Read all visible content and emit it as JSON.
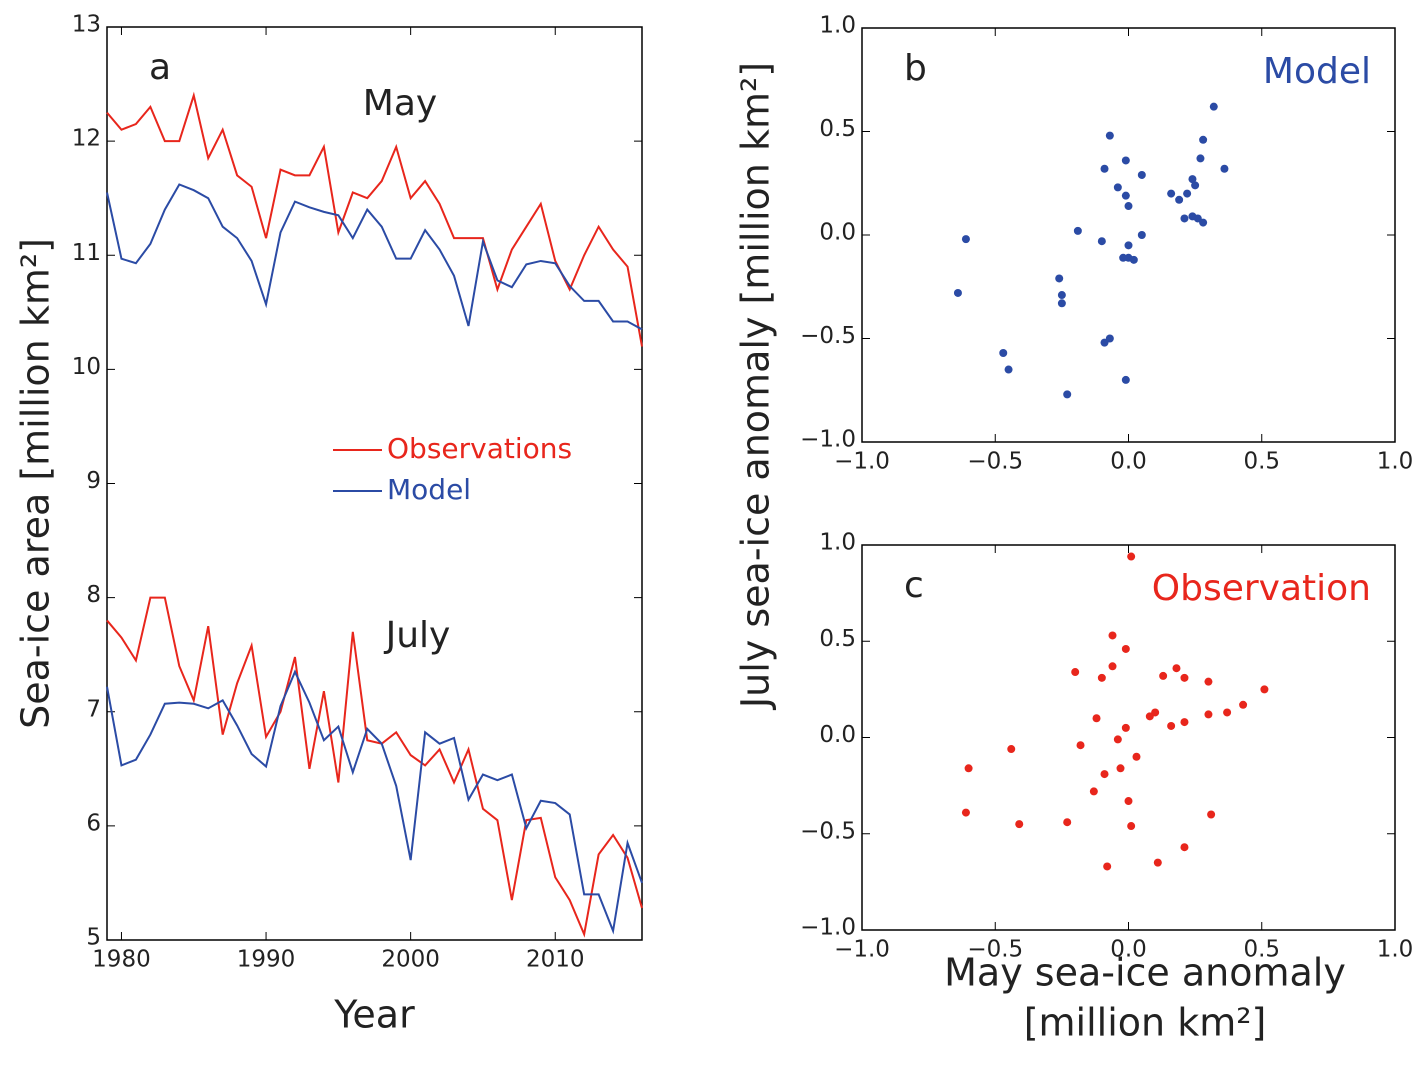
{
  "chart_data": [
    {
      "type": "line",
      "panel": "a",
      "xlabel": "Year",
      "ylabel": "Sea-ice area [million km²]",
      "x": [
        1979,
        1980,
        1981,
        1982,
        1983,
        1984,
        1985,
        1986,
        1987,
        1988,
        1989,
        1990,
        1991,
        1992,
        1993,
        1994,
        1995,
        1996,
        1997,
        1998,
        1999,
        2000,
        2001,
        2002,
        2003,
        2004,
        2005,
        2006,
        2007,
        2008,
        2009,
        2010,
        2011,
        2012,
        2013,
        2014,
        2015,
        2016
      ],
      "groups": [
        {
          "label": "May",
          "series": [
            {
              "name": "Observations",
              "color": "#e8261c",
              "values": [
                12.25,
                12.1,
                12.15,
                12.3,
                12.0,
                12.0,
                12.4,
                11.85,
                12.1,
                11.7,
                11.6,
                11.15,
                11.75,
                11.7,
                11.7,
                11.95,
                11.2,
                11.55,
                11.5,
                11.65,
                11.95,
                11.5,
                11.65,
                11.45,
                11.15,
                11.15,
                11.15,
                10.7,
                11.05,
                11.25,
                11.45,
                10.95,
                10.7,
                11.0,
                11.25,
                11.05,
                10.9,
                10.2
              ]
            },
            {
              "name": "Model",
              "color": "#2b4ba5",
              "values": [
                11.55,
                10.97,
                10.93,
                11.1,
                11.4,
                11.62,
                11.57,
                11.5,
                11.25,
                11.15,
                10.95,
                10.57,
                11.2,
                11.47,
                11.42,
                11.38,
                11.35,
                11.15,
                11.4,
                11.25,
                10.97,
                10.97,
                11.22,
                11.05,
                10.82,
                10.38,
                11.12,
                10.78,
                10.72,
                10.92,
                10.95,
                10.93,
                10.73,
                10.6,
                10.6,
                10.42,
                10.42,
                10.35
              ]
            }
          ]
        },
        {
          "label": "July",
          "series": [
            {
              "color": "#e8261c",
              "values": [
                7.8,
                7.65,
                7.45,
                8.0,
                8.0,
                7.4,
                7.1,
                7.75,
                6.8,
                7.25,
                7.58,
                6.78,
                7.0,
                7.48,
                6.5,
                7.18,
                6.38,
                7.7,
                6.75,
                6.72,
                6.82,
                6.62,
                6.53,
                6.67,
                6.38,
                6.67,
                6.15,
                6.05,
                5.35,
                6.05,
                6.07,
                5.55,
                5.35,
                5.05,
                5.75,
                5.92,
                5.72,
                5.28
              ]
            },
            {
              "color": "#2b4ba5",
              "values": [
                7.22,
                6.53,
                6.58,
                6.8,
                7.07,
                7.08,
                7.07,
                7.03,
                7.1,
                6.88,
                6.63,
                6.52,
                7.05,
                7.35,
                7.08,
                6.75,
                6.87,
                6.47,
                6.85,
                6.72,
                6.35,
                5.7,
                6.82,
                6.72,
                6.77,
                6.23,
                6.45,
                6.4,
                6.45,
                5.98,
                6.22,
                6.2,
                6.1,
                5.4,
                5.4,
                5.08,
                5.85,
                5.5
              ]
            }
          ]
        }
      ],
      "xlim": [
        1979,
        2016
      ],
      "xticks": [
        1980,
        1990,
        2000,
        2010
      ],
      "ylim": [
        5,
        13
      ],
      "yticks": [
        5,
        6,
        7,
        8,
        9,
        10,
        11,
        12,
        13
      ]
    },
    {
      "type": "scatter",
      "panel": "b",
      "title": "Model",
      "color": "#2b4ba5",
      "ylabel": "July sea-ice anomaly [million km²]",
      "x": [
        0.32,
        -0.07,
        0.28,
        0.27,
        0.36,
        -0.01,
        -0.09,
        0.05,
        -0.04,
        -0.01,
        0,
        0.16,
        0.19,
        0.22,
        0.24,
        0.25,
        0.21,
        0.24,
        0.26,
        0.28,
        -0.19,
        -0.1,
        0.05,
        0,
        0,
        0.02,
        -0.02,
        -0.61,
        -0.64,
        -0.26,
        -0.25,
        -0.25,
        -0.47,
        -0.45,
        -0.23,
        -0.09,
        -0.07,
        -0.01
      ],
      "values": [
        0.62,
        0.48,
        0.46,
        0.37,
        0.32,
        0.36,
        0.32,
        0.29,
        0.23,
        0.19,
        0.14,
        0.2,
        0.17,
        0.2,
        0.27,
        0.24,
        0.08,
        0.09,
        0.08,
        0.06,
        0.02,
        -0.03,
        0,
        -0.05,
        -0.11,
        -0.12,
        -0.11,
        -0.02,
        -0.28,
        -0.21,
        -0.29,
        -0.33,
        -0.57,
        -0.65,
        -0.77,
        -0.52,
        -0.5,
        -0.7
      ],
      "xlim": [
        -1,
        1
      ],
      "xticks": [
        {
          "value": -1,
          "label": "−1.0"
        },
        {
          "value": -0.5,
          "label": "−0.5"
        },
        {
          "value": 0,
          "label": "0.0"
        },
        {
          "value": 0.5,
          "label": "0.5"
        },
        {
          "value": 1,
          "label": "1.0"
        }
      ],
      "ylim": [
        -1,
        1
      ],
      "yticks": [
        {
          "value": -1,
          "label": "−1.0"
        },
        {
          "value": -0.5,
          "label": "−0.5"
        },
        {
          "value": 0,
          "label": "0.0"
        },
        {
          "value": 0.5,
          "label": "0.5"
        },
        {
          "value": 1,
          "label": "1.0"
        }
      ]
    },
    {
      "type": "scatter",
      "panel": "c",
      "title": "Observation",
      "color": "#e8261c",
      "xlabel": [
        "May sea-ice anomaly",
        "[million km²]"
      ],
      "x": [
        0.01,
        -0.06,
        -0.01,
        -0.06,
        -0.2,
        -0.1,
        0.13,
        0.18,
        0.21,
        0.3,
        0.51,
        0.43,
        0.37,
        0.3,
        0.21,
        0.16,
        0.1,
        0.08,
        -0.12,
        -0.01,
        -0.04,
        -0.18,
        -0.44,
        0.03,
        -0.03,
        -0.09,
        -0.13,
        -0.6,
        -0.61,
        -0.41,
        -0.23,
        0,
        0.01,
        0.31,
        -0.08,
        0.11,
        0.21
      ],
      "values": [
        0.94,
        0.53,
        0.46,
        0.37,
        0.34,
        0.31,
        0.32,
        0.36,
        0.31,
        0.29,
        0.25,
        0.17,
        0.13,
        0.12,
        0.08,
        0.06,
        0.13,
        0.11,
        0.1,
        0.05,
        -0.01,
        -0.04,
        -0.06,
        -0.1,
        -0.16,
        -0.19,
        -0.28,
        -0.16,
        -0.39,
        -0.45,
        -0.44,
        -0.33,
        -0.46,
        -0.4,
        -0.67,
        -0.65,
        -0.57
      ],
      "xlim": [
        -1,
        1
      ],
      "xticks": [
        {
          "value": -1,
          "label": "−1.0"
        },
        {
          "value": -0.5,
          "label": "−0.5"
        },
        {
          "value": 0,
          "label": "0.0"
        },
        {
          "value": 0.5,
          "label": "0.5"
        },
        {
          "value": 1,
          "label": "1.0"
        }
      ],
      "ylim": [
        -1,
        1
      ],
      "yticks": [
        {
          "value": -1,
          "label": "−1.0"
        },
        {
          "value": -0.5,
          "label": "−0.5"
        },
        {
          "value": 0,
          "label": "0.0"
        },
        {
          "value": 0.5,
          "label": "0.5"
        },
        {
          "value": 1,
          "label": "1.0"
        }
      ]
    }
  ]
}
